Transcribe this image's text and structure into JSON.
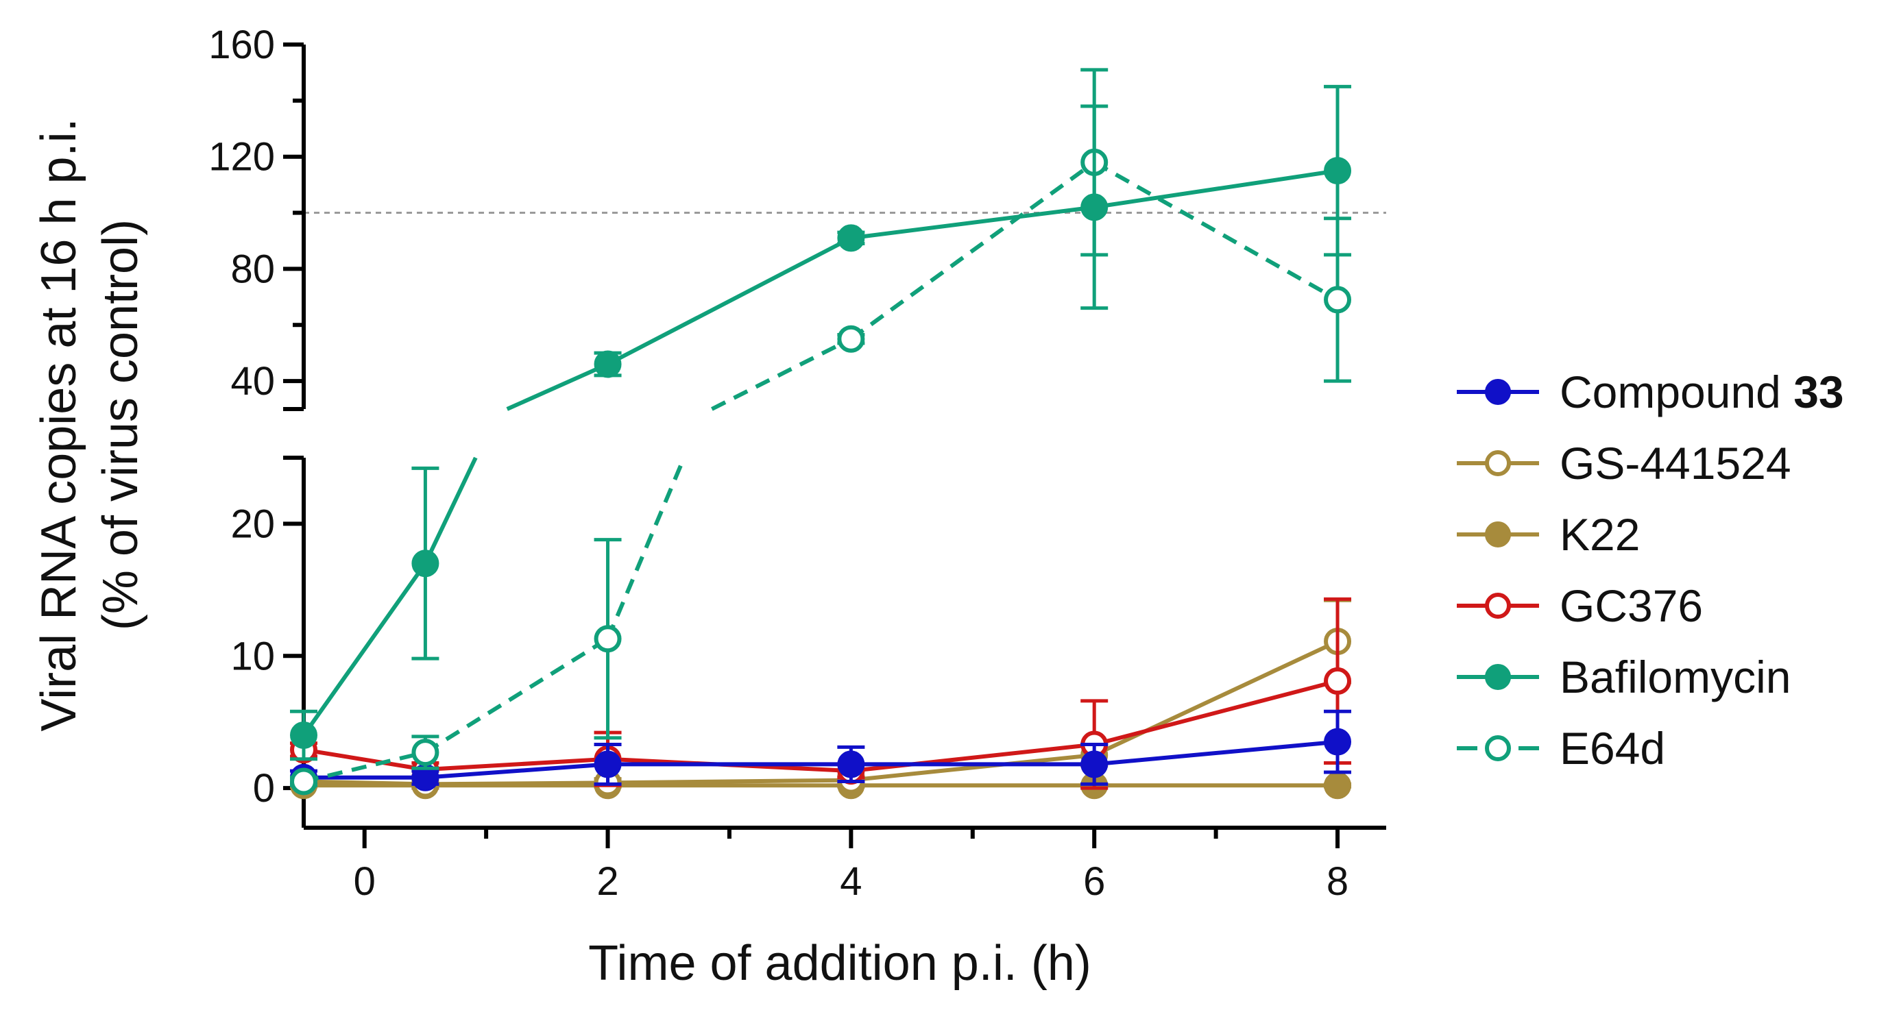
{
  "chart_data": {
    "type": "line",
    "title": "",
    "xlabel": "Time of addition p.i. (h)",
    "ylabel_line1": "Viral RNA copies at 16 h p.i.",
    "ylabel_line2": "(% of virus control)",
    "xlim": [
      -0.5,
      8.4
    ],
    "x_ticks": [
      0,
      2,
      4,
      6,
      8
    ],
    "x_tick_labels": [
      "0",
      "2",
      "4",
      "6",
      "8"
    ],
    "x_minor_ticks": [
      1,
      3,
      5,
      7
    ],
    "y_axis_segments": [
      {
        "name": "upper",
        "range": [
          30,
          160
        ],
        "ticks": [
          40,
          80,
          120,
          160
        ]
      },
      {
        "name": "lower",
        "range": [
          -3,
          25
        ],
        "ticks": [
          0,
          10,
          20
        ]
      }
    ],
    "reference_line": {
      "y": 100,
      "style": "dotted",
      "color": "#9a9a9a"
    },
    "x": [
      -0.5,
      0.5,
      2,
      4,
      6,
      8
    ],
    "series": [
      {
        "name": "Compound",
        "name_bold": "33",
        "color": "#1010c8",
        "marker": "filled",
        "dashed": false,
        "values": [
          0.8,
          0.8,
          1.8,
          1.8,
          1.8,
          3.5
        ],
        "errors": [
          0.5,
          0.5,
          1.5,
          1.3,
          1.5,
          2.3
        ]
      },
      {
        "name": "GS-441524",
        "name_bold": "",
        "color": "#a78b3c",
        "marker": "open",
        "dashed": false,
        "values": [
          0.5,
          0.3,
          0.4,
          0.6,
          2.5,
          11.1
        ],
        "errors": [
          0.3,
          0.3,
          0.3,
          0.3,
          0.8,
          3.1
        ]
      },
      {
        "name": "K22",
        "name_bold": "",
        "color": "#a78b3c",
        "marker": "filled",
        "dashed": false,
        "values": [
          0.2,
          0.2,
          0.2,
          0.2,
          0.2,
          0.2
        ],
        "errors": [
          0.1,
          0.1,
          0.1,
          0.1,
          0.1,
          0.1
        ]
      },
      {
        "name": "GC376",
        "name_bold": "",
        "color": "#d01818",
        "marker": "open",
        "dashed": false,
        "values": [
          2.9,
          1.4,
          2.2,
          1.3,
          3.3,
          8.1
        ],
        "errors": [
          0.5,
          0.5,
          2.0,
          0.5,
          3.3,
          6.2
        ]
      },
      {
        "name": "Bafilomycin",
        "name_bold": "",
        "color": "#10a07a",
        "marker": "filled",
        "dashed": false,
        "values": [
          4.0,
          17.0,
          46,
          91,
          102,
          115
        ],
        "errors": [
          1.8,
          7.2,
          4,
          2,
          36,
          30
        ]
      },
      {
        "name": "E64d",
        "name_bold": "",
        "color": "#10a07a",
        "marker": "open",
        "dashed": true,
        "values": [
          0.5,
          2.7,
          11.3,
          55,
          118,
          69
        ],
        "errors": [
          0.3,
          1.2,
          7.5,
          1.5,
          33,
          29
        ]
      }
    ]
  }
}
